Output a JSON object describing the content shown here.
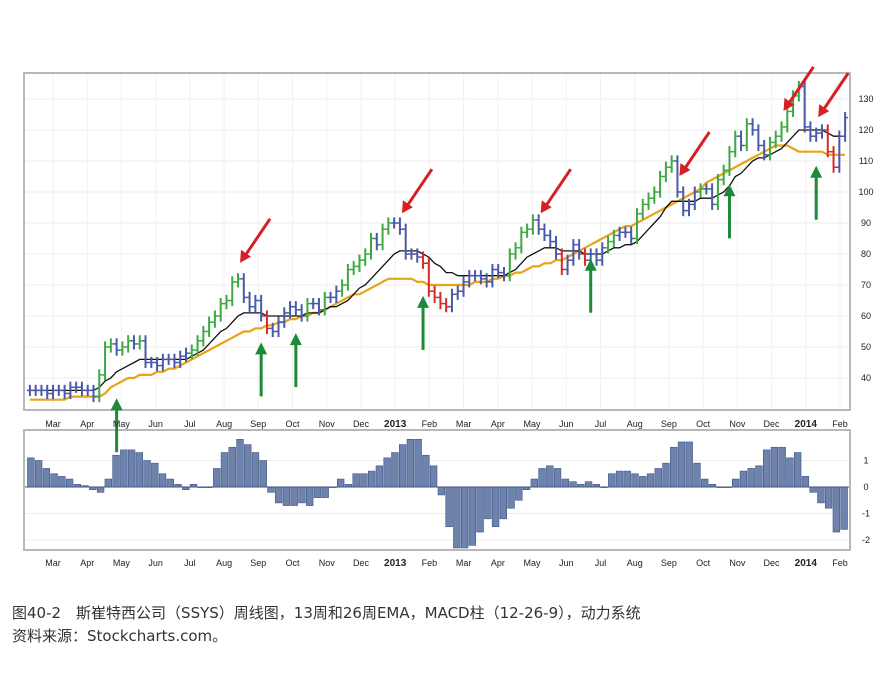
{
  "chart_data": [
    {
      "type": "line",
      "panel": "price",
      "x_labels": [
        "Mar",
        "Apr",
        "May",
        "Jun",
        "Jul",
        "Aug",
        "Sep",
        "Oct",
        "Nov",
        "Dec",
        "2013",
        "Feb",
        "Mar",
        "Apr",
        "May",
        "Jun",
        "Jul",
        "Aug",
        "Sep",
        "Oct",
        "Nov",
        "Dec",
        "2014",
        "Feb"
      ],
      "bold_labels": [
        "2013",
        "2014"
      ],
      "y_ticks": [
        40,
        50,
        60,
        70,
        80,
        90,
        100,
        110,
        120,
        130
      ],
      "ylim": [
        30,
        140
      ],
      "weekly_close": [
        36,
        36,
        36,
        35,
        36,
        36,
        35,
        37,
        37,
        36,
        36,
        34,
        41,
        50,
        51,
        49,
        50,
        52,
        51,
        52,
        45,
        45,
        44,
        46,
        46,
        45,
        47,
        48,
        49,
        52,
        55,
        58,
        60,
        64,
        65,
        71,
        72,
        66,
        63,
        65,
        60,
        56,
        55,
        58,
        61,
        63,
        62,
        60,
        64,
        64,
        62,
        66,
        66,
        68,
        70,
        75,
        76,
        78,
        80,
        85,
        83,
        88,
        90,
        90,
        88,
        80,
        80,
        79,
        77,
        68,
        66,
        64,
        63,
        67,
        68,
        71,
        73,
        73,
        72,
        71,
        75,
        74,
        73,
        80,
        82,
        87,
        88,
        91,
        88,
        86,
        84,
        80,
        75,
        78,
        83,
        80,
        78,
        80,
        78,
        82,
        84,
        86,
        87,
        87,
        85,
        93,
        96,
        98,
        100,
        105,
        108,
        110,
        100,
        94,
        96,
        100,
        101,
        101,
        96,
        104,
        107,
        113,
        118,
        115,
        122,
        120,
        115,
        112,
        116,
        118,
        121,
        126,
        131,
        134,
        121,
        118,
        119,
        120,
        113,
        108,
        118,
        124
      ],
      "series": [
        {
          "name": "13周EMA",
          "color": "#111111",
          "values": [
            36,
            36,
            36,
            36,
            36,
            36,
            36,
            36,
            36,
            36,
            36,
            36,
            37,
            39,
            40,
            42,
            43,
            44,
            45,
            46,
            46,
            46,
            46,
            46,
            46,
            46,
            46,
            46,
            47,
            48,
            49,
            51,
            53,
            55,
            56,
            58,
            60,
            61,
            61,
            61,
            61,
            60,
            60,
            60,
            60,
            60,
            60,
            60,
            61,
            61,
            61,
            62,
            63,
            63,
            64,
            65,
            67,
            69,
            70,
            72,
            74,
            76,
            78,
            80,
            81,
            81,
            81,
            81,
            80,
            79,
            77,
            76,
            74,
            74,
            73,
            73,
            73,
            73,
            73,
            73,
            73,
            73,
            73,
            74,
            75,
            77,
            79,
            80,
            81,
            82,
            82,
            82,
            81,
            81,
            81,
            81,
            80,
            80,
            80,
            80,
            81,
            82,
            82,
            83,
            83,
            84,
            86,
            88,
            90,
            92,
            95,
            97,
            97,
            97,
            97,
            97,
            98,
            98,
            98,
            99,
            100,
            102,
            105,
            106,
            108,
            110,
            111,
            111,
            112,
            113,
            114,
            116,
            118,
            120,
            120,
            120,
            120,
            120,
            119,
            118,
            118,
            118
          ]
        },
        {
          "name": "26周EMA",
          "color": "#e8a317",
          "values": [
            33,
            33,
            33,
            33,
            33,
            33,
            33,
            34,
            34,
            34,
            34,
            34,
            34,
            35,
            37,
            38,
            39,
            40,
            40,
            41,
            41,
            41,
            42,
            42,
            43,
            43,
            44,
            45,
            46,
            47,
            48,
            49,
            50,
            51,
            52,
            53,
            54,
            55,
            55,
            56,
            56,
            57,
            57,
            58,
            58,
            59,
            59,
            60,
            60,
            61,
            61,
            62,
            63,
            64,
            65,
            66,
            67,
            67,
            68,
            69,
            70,
            71,
            72,
            72,
            72,
            72,
            72,
            71,
            71,
            70,
            70,
            70,
            70,
            70,
            70,
            70,
            70,
            71,
            71,
            71,
            72,
            72,
            73,
            73,
            74,
            74,
            75,
            76,
            76,
            77,
            77,
            78,
            78,
            79,
            80,
            81,
            82,
            83,
            84,
            85,
            86,
            87,
            88,
            89,
            89,
            90,
            91,
            92,
            93,
            94,
            95,
            96,
            97,
            98,
            99,
            100,
            101,
            103,
            104,
            105,
            106,
            107,
            108,
            109,
            110,
            111,
            112,
            113,
            114,
            115,
            115,
            115,
            114,
            113,
            113,
            113,
            113,
            113,
            112,
            112,
            112,
            112
          ]
        }
      ],
      "up_arrows_weeks": [
        15,
        40,
        46,
        68,
        97,
        121,
        136
      ],
      "down_arrows_weeks": [
        36,
        64,
        88,
        112,
        130,
        136
      ],
      "colors": {
        "rising": "#3fa845",
        "falling": "#d62a2a",
        "neutral": "#4a59a8",
        "up_arrow": "#1d8a3a",
        "down_arrow": "#d61f26"
      }
    },
    {
      "type": "bar",
      "panel": "macd_histogram",
      "y_ticks": [
        1,
        0,
        -1,
        -2
      ],
      "ylim": [
        -2.3,
        2.0
      ],
      "values": [
        1.1,
        1.0,
        0.7,
        0.5,
        0.4,
        0.3,
        0.1,
        0.05,
        -0.1,
        -0.2,
        0.3,
        1.2,
        1.4,
        1.4,
        1.3,
        1.0,
        0.9,
        0.5,
        0.3,
        0.1,
        -0.1,
        0.1,
        0.0,
        0.0,
        0.7,
        1.3,
        1.5,
        1.8,
        1.6,
        1.3,
        1.0,
        -0.2,
        -0.6,
        -0.7,
        -0.7,
        -0.6,
        -0.7,
        -0.4,
        -0.4,
        0.0,
        0.3,
        0.1,
        0.5,
        0.5,
        0.6,
        0.8,
        1.1,
        1.3,
        1.6,
        1.8,
        1.8,
        1.2,
        0.8,
        -0.3,
        -1.5,
        -2.3,
        -2.3,
        -2.2,
        -1.7,
        -1.2,
        -1.5,
        -1.2,
        -0.8,
        -0.5,
        -0.1,
        0.3,
        0.7,
        0.8,
        0.7,
        0.3,
        0.2,
        0.1,
        0.2,
        0.1,
        0.0,
        0.5,
        0.6,
        0.6,
        0.5,
        0.4,
        0.5,
        0.7,
        0.9,
        1.5,
        1.7,
        1.7,
        0.9,
        0.3,
        0.1,
        0.0,
        0.0,
        0.3,
        0.6,
        0.7,
        0.8,
        1.4,
        1.5,
        1.5,
        1.1,
        1.3,
        0.4,
        -0.2,
        -0.6,
        -0.8,
        -1.7,
        -1.6
      ],
      "color": "#6d83ad"
    }
  ],
  "caption": {
    "line1": "图40-2　斯崔特西公司（SSYS）周线图，13周和26周EMA，MACD柱（12-26-9），动力系统",
    "line2": "资料来源：Stockcharts.com。"
  }
}
